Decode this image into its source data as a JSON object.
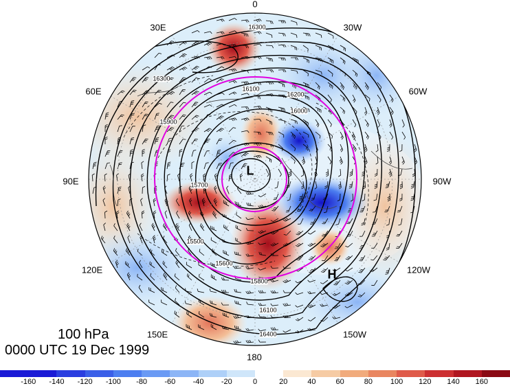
{
  "level_label": "100 hPa",
  "time_label": "0000 UTC 19 Dec 1999",
  "longitude_labels": [
    "0",
    "30W",
    "60W",
    "90W",
    "120W",
    "150W",
    "180",
    "150E",
    "120E",
    "90E",
    "60E",
    "30E"
  ],
  "high_label": "H",
  "low_label": "L",
  "contour_labels": [
    "16300",
    "16200",
    "16100",
    "16000",
    "15900",
    "15800",
    "15700",
    "15600",
    "15500",
    "16400"
  ],
  "colorbar": {
    "ticks": [
      "-160",
      "-140",
      "-120",
      "-100",
      "-80",
      "-60",
      "-40",
      "-20",
      "0",
      "20",
      "40",
      "60",
      "80",
      "100",
      "120",
      "140",
      "160"
    ],
    "colors": [
      "#1a1ad6",
      "#2a3ee0",
      "#3a5fe8",
      "#4c7ef0",
      "#6a9af4",
      "#8cb5f6",
      "#aed0f8",
      "#cfe6fa",
      "#ffffff",
      "#fbe8d2",
      "#f6cba4",
      "#f1ab7c",
      "#e98660",
      "#df5b4a",
      "#cc2f31",
      "#b01620",
      "#8a0a14"
    ]
  }
}
